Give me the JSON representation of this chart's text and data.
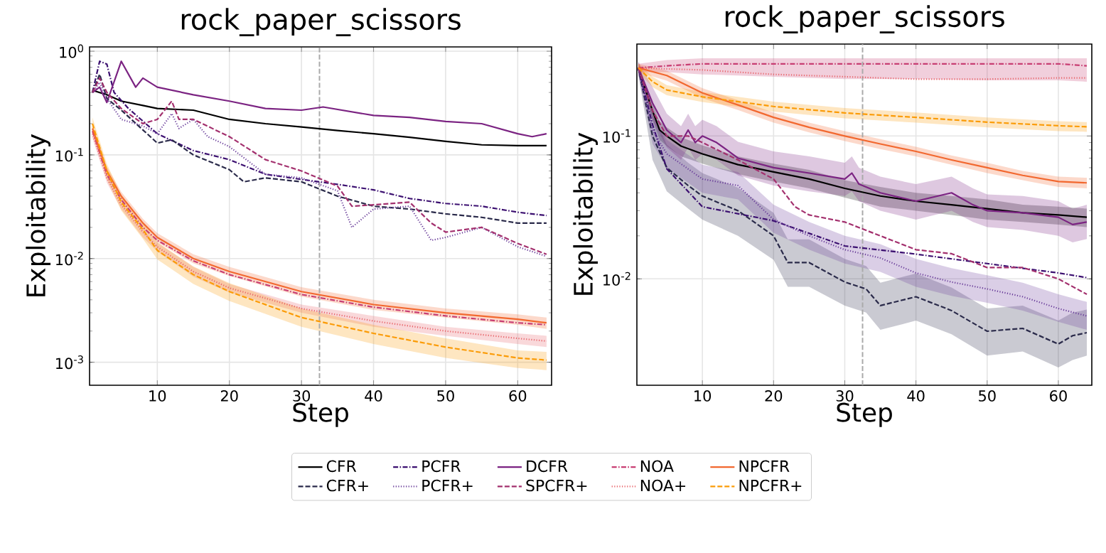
{
  "chart_data": [
    {
      "type": "line",
      "title": "rock_paper_scissors",
      "xlabel": "Step",
      "ylabel": "Exploitability",
      "log": true,
      "grid": true,
      "legend": "bottom",
      "xlim": [
        0.6,
        64.7
      ],
      "ylim": [
        0.0006,
        1.1
      ],
      "xticks": [
        10,
        20,
        30,
        40,
        50,
        60
      ],
      "yticks": [
        {
          "value": 0.001,
          "label": "10$^{-3}$"
        },
        {
          "value": 0.01,
          "label": "10$^{-2}$"
        },
        {
          "value": 0.1,
          "label": "10$^{-1}$"
        },
        {
          "value": 1,
          "label": "10$^{0}$"
        }
      ],
      "ref_lines": [
        {
          "axis": "x",
          "value": 32.5,
          "color": "#aaaaaa",
          "line_style": "dashed"
        }
      ],
      "series": [
        {
          "name": "CFR",
          "color": "#000000",
          "line_style": "solid",
          "x": [
            1,
            3,
            5,
            8,
            10,
            15,
            20,
            25,
            30,
            35,
            40,
            45,
            50,
            55,
            60,
            64
          ],
          "values": [
            0.42,
            0.38,
            0.33,
            0.3,
            0.28,
            0.27,
            0.22,
            0.2,
            0.186,
            0.172,
            0.16,
            0.148,
            0.135,
            0.125,
            0.123,
            0.123
          ]
        },
        {
          "name": "CFR+",
          "color": "#2a2a4a",
          "line_style": "dashed",
          "x": [
            1,
            2,
            3,
            5,
            10,
            12,
            15,
            20,
            22,
            25,
            30,
            35,
            40,
            45,
            50,
            55,
            60,
            64
          ],
          "values": [
            0.4,
            0.6,
            0.35,
            0.27,
            0.13,
            0.14,
            0.1,
            0.072,
            0.055,
            0.06,
            0.055,
            0.04,
            0.032,
            0.03,
            0.027,
            0.025,
            0.022,
            0.022
          ]
        },
        {
          "name": "PCFR",
          "color": "#3b0f70",
          "line_style": "dashdot",
          "x": [
            1,
            2,
            3,
            4,
            6,
            10,
            15,
            20,
            25,
            30,
            35,
            40,
            45,
            50,
            55,
            60,
            64
          ],
          "values": [
            0.4,
            0.8,
            0.75,
            0.4,
            0.28,
            0.16,
            0.11,
            0.09,
            0.065,
            0.058,
            0.052,
            0.046,
            0.038,
            0.034,
            0.032,
            0.028,
            0.026
          ]
        },
        {
          "name": "PCFR+",
          "color": "#6a3d9a",
          "line_style": "dotted",
          "x": [
            1,
            2,
            3,
            5,
            8,
            10,
            12,
            13,
            15,
            17,
            20,
            25,
            30,
            35,
            37,
            40,
            45,
            48,
            50,
            55,
            60,
            64
          ],
          "values": [
            0.4,
            0.5,
            0.35,
            0.22,
            0.19,
            0.16,
            0.25,
            0.18,
            0.22,
            0.15,
            0.12,
            0.065,
            0.06,
            0.045,
            0.02,
            0.03,
            0.032,
            0.015,
            0.016,
            0.02,
            0.013,
            0.0105
          ]
        },
        {
          "name": "DCFR",
          "color": "#7b2382",
          "line_style": "solid",
          "x": [
            1,
            2,
            3,
            5,
            7,
            8,
            10,
            15,
            20,
            25,
            30,
            33,
            40,
            45,
            50,
            55,
            60,
            62,
            64
          ],
          "values": [
            0.4,
            0.45,
            0.32,
            0.8,
            0.45,
            0.55,
            0.45,
            0.38,
            0.33,
            0.28,
            0.27,
            0.29,
            0.24,
            0.23,
            0.21,
            0.2,
            0.16,
            0.15,
            0.16
          ]
        },
        {
          "name": "SPCFR+",
          "color": "#a3306e",
          "line_style": "dashed",
          "x": [
            1,
            2,
            3,
            5,
            8,
            10,
            12,
            13,
            15,
            20,
            25,
            30,
            35,
            37,
            40,
            45,
            48,
            50,
            55,
            60,
            64
          ],
          "values": [
            0.4,
            0.55,
            0.4,
            0.28,
            0.2,
            0.22,
            0.33,
            0.22,
            0.22,
            0.15,
            0.09,
            0.07,
            0.05,
            0.032,
            0.033,
            0.035,
            0.022,
            0.018,
            0.02,
            0.014,
            0.011
          ]
        },
        {
          "name": "NOA",
          "color": "#c83e73",
          "line_style": "dashdot",
          "x": [
            1,
            3,
            5,
            8,
            10,
            15,
            20,
            30,
            40,
            50,
            60,
            64
          ],
          "values": [
            0.17,
            0.065,
            0.037,
            0.02,
            0.015,
            0.0095,
            0.007,
            0.0045,
            0.0034,
            0.0028,
            0.0024,
            0.0023
          ]
        },
        {
          "name": "NOA+",
          "color": "#e8646a",
          "line_style": "dotted",
          "x": [
            1,
            3,
            5,
            8,
            10,
            15,
            20,
            30,
            40,
            50,
            60,
            64
          ],
          "values": [
            0.16,
            0.06,
            0.033,
            0.018,
            0.013,
            0.0075,
            0.0052,
            0.0033,
            0.0025,
            0.002,
            0.0017,
            0.0016
          ],
          "lower": [
            0.145,
            0.054,
            0.03,
            0.016,
            0.0117,
            0.0067,
            0.0047,
            0.003,
            0.0022,
            0.0018,
            0.0015,
            0.0014
          ],
          "upper": [
            0.176,
            0.066,
            0.036,
            0.02,
            0.0143,
            0.0083,
            0.0057,
            0.0036,
            0.0028,
            0.0022,
            0.0019,
            0.0018
          ]
        },
        {
          "name": "NPCFR",
          "color": "#f2682f",
          "line_style": "solid",
          "x": [
            1,
            3,
            5,
            8,
            10,
            15,
            20,
            30,
            40,
            50,
            60,
            64
          ],
          "values": [
            0.18,
            0.07,
            0.04,
            0.022,
            0.016,
            0.01,
            0.0075,
            0.0048,
            0.0036,
            0.003,
            0.0026,
            0.0024
          ],
          "lower": [
            0.162,
            0.063,
            0.036,
            0.0198,
            0.0144,
            0.009,
            0.0068,
            0.0043,
            0.0032,
            0.0027,
            0.0023,
            0.0021
          ],
          "upper": [
            0.198,
            0.077,
            0.044,
            0.0242,
            0.0176,
            0.011,
            0.0083,
            0.0053,
            0.004,
            0.0033,
            0.0029,
            0.0027
          ]
        },
        {
          "name": "NPCFR+",
          "color": "#fb9b06",
          "line_style": "dashed",
          "x": [
            1,
            3,
            5,
            8,
            10,
            15,
            20,
            30,
            40,
            50,
            60,
            64
          ],
          "values": [
            0.2,
            0.07,
            0.035,
            0.019,
            0.012,
            0.007,
            0.0048,
            0.0027,
            0.0019,
            0.0014,
            0.0011,
            0.00105
          ],
          "lower": [
            0.17,
            0.058,
            0.029,
            0.0155,
            0.0098,
            0.0057,
            0.0039,
            0.0022,
            0.0015,
            0.0011,
            0.00088,
            0.00084
          ],
          "upper": [
            0.23,
            0.082,
            0.041,
            0.0225,
            0.0144,
            0.0084,
            0.0058,
            0.0033,
            0.0023,
            0.0017,
            0.0013,
            0.00126
          ]
        }
      ]
    },
    {
      "type": "line",
      "title": "rock_paper_scissors",
      "xlabel": "Step",
      "ylabel": "Exploitability",
      "log": true,
      "grid": true,
      "xlim": [
        0.8,
        64.7
      ],
      "ylim": [
        0.0018,
        0.44
      ],
      "xticks": [
        10,
        20,
        30,
        40,
        50,
        60
      ],
      "yticks": [
        {
          "value": 0.01,
          "label": "10$^{-2}$"
        },
        {
          "value": 0.1,
          "label": "10$^{-1}$"
        }
      ],
      "ref_lines": [
        {
          "axis": "x",
          "value": 32.5,
          "color": "#aaaaaa",
          "line_style": "dashed"
        }
      ],
      "series": [
        {
          "color": "#000000",
          "line_style": "solid",
          "x": [
            1,
            3,
            4,
            5,
            7,
            10,
            15,
            20,
            25,
            30,
            35,
            40,
            45,
            50,
            55,
            60,
            64
          ],
          "values": [
            0.3,
            0.15,
            0.11,
            0.1,
            0.085,
            0.075,
            0.063,
            0.056,
            0.05,
            0.043,
            0.038,
            0.035,
            0.033,
            0.031,
            0.029,
            0.028,
            0.027
          ],
          "lower": [
            0.28,
            0.13,
            0.094,
            0.085,
            0.072,
            0.064,
            0.054,
            0.048,
            0.043,
            0.037,
            0.032,
            0.03,
            0.028,
            0.026,
            0.025,
            0.024,
            0.023
          ],
          "upper": [
            0.32,
            0.17,
            0.127,
            0.115,
            0.098,
            0.086,
            0.072,
            0.064,
            0.058,
            0.049,
            0.044,
            0.04,
            0.038,
            0.036,
            0.033,
            0.032,
            0.031
          ]
        },
        {
          "color": "#2a2a4a",
          "line_style": "dashed",
          "x": [
            1,
            3,
            5,
            8,
            10,
            15,
            20,
            22,
            25,
            30,
            33,
            35,
            40,
            45,
            50,
            55,
            60,
            62,
            64
          ],
          "values": [
            0.3,
            0.1,
            0.06,
            0.045,
            0.038,
            0.03,
            0.02,
            0.013,
            0.013,
            0.0095,
            0.0085,
            0.0065,
            0.0075,
            0.006,
            0.0043,
            0.0045,
            0.0035,
            0.004,
            0.0042
          ],
          "lower": [
            0.27,
            0.068,
            0.041,
            0.031,
            0.026,
            0.02,
            0.0136,
            0.0088,
            0.0088,
            0.0065,
            0.0058,
            0.0044,
            0.0051,
            0.0041,
            0.0029,
            0.0031,
            0.0024,
            0.0027,
            0.0029
          ],
          "upper": [
            0.33,
            0.145,
            0.087,
            0.065,
            0.055,
            0.0435,
            0.029,
            0.0189,
            0.0189,
            0.0138,
            0.0123,
            0.0094,
            0.0109,
            0.0087,
            0.0062,
            0.0065,
            0.0051,
            0.0058,
            0.0061
          ]
        },
        {
          "color": "#3b0f70",
          "line_style": "dashdot",
          "x": [
            1,
            3,
            5,
            10,
            20,
            30,
            40,
            50,
            60,
            64
          ],
          "values": [
            0.3,
            0.12,
            0.059,
            0.032,
            0.0255,
            0.017,
            0.0149,
            0.0128,
            0.011,
            0.0102
          ]
        },
        {
          "color": "#6a3d9a",
          "line_style": "dotted",
          "x": [
            1,
            3,
            5,
            10,
            15,
            20,
            25,
            30,
            35,
            40,
            45,
            50,
            55,
            60,
            64
          ],
          "values": [
            0.3,
            0.11,
            0.075,
            0.05,
            0.045,
            0.026,
            0.02,
            0.016,
            0.014,
            0.011,
            0.0095,
            0.0085,
            0.0075,
            0.0062,
            0.0055
          ],
          "lower": [
            0.27,
            0.088,
            0.06,
            0.04,
            0.036,
            0.021,
            0.016,
            0.0128,
            0.0112,
            0.0088,
            0.0076,
            0.0068,
            0.006,
            0.005,
            0.0044
          ],
          "upper": [
            0.33,
            0.138,
            0.094,
            0.063,
            0.056,
            0.033,
            0.025,
            0.02,
            0.0175,
            0.0138,
            0.0119,
            0.0106,
            0.0094,
            0.0078,
            0.0069
          ]
        },
        {
          "color": "#7b2382",
          "line_style": "solid",
          "x": [
            1,
            3,
            5,
            7,
            8,
            9,
            10,
            12,
            15,
            20,
            25,
            30,
            31,
            32,
            35,
            40,
            45,
            48,
            50,
            55,
            60,
            62,
            64
          ],
          "values": [
            0.3,
            0.17,
            0.11,
            0.09,
            0.11,
            0.09,
            0.1,
            0.09,
            0.07,
            0.06,
            0.055,
            0.05,
            0.055,
            0.046,
            0.04,
            0.035,
            0.04,
            0.033,
            0.03,
            0.029,
            0.027,
            0.024,
            0.025
          ],
          "lower": [
            0.27,
            0.13,
            0.083,
            0.068,
            0.083,
            0.068,
            0.075,
            0.068,
            0.053,
            0.045,
            0.041,
            0.038,
            0.041,
            0.035,
            0.03,
            0.026,
            0.03,
            0.025,
            0.023,
            0.022,
            0.02,
            0.018,
            0.019
          ],
          "upper": [
            0.33,
            0.22,
            0.143,
            0.117,
            0.143,
            0.117,
            0.13,
            0.117,
            0.091,
            0.078,
            0.072,
            0.065,
            0.072,
            0.06,
            0.052,
            0.046,
            0.052,
            0.043,
            0.039,
            0.038,
            0.035,
            0.031,
            0.033
          ]
        },
        {
          "color": "#a3306e",
          "line_style": "dashed",
          "x": [
            1,
            3,
            5,
            8,
            10,
            15,
            20,
            23,
            25,
            30,
            35,
            40,
            45,
            50,
            55,
            60,
            64
          ],
          "values": [
            0.3,
            0.15,
            0.1,
            0.1,
            0.09,
            0.068,
            0.05,
            0.032,
            0.028,
            0.025,
            0.02,
            0.016,
            0.015,
            0.012,
            0.012,
            0.01,
            0.0078
          ]
        },
        {
          "color": "#c83e73",
          "line_style": "dashdot",
          "x": [
            1,
            5,
            10,
            20,
            30,
            40,
            50,
            60,
            64
          ],
          "values": [
            0.3,
            0.31,
            0.32,
            0.32,
            0.32,
            0.32,
            0.32,
            0.32,
            0.31
          ],
          "lower": [
            0.28,
            0.28,
            0.27,
            0.26,
            0.25,
            0.25,
            0.245,
            0.245,
            0.24
          ],
          "upper": [
            0.32,
            0.34,
            0.35,
            0.35,
            0.35,
            0.35,
            0.35,
            0.35,
            0.35
          ]
        },
        {
          "color": "#e8646a",
          "line_style": "dotted",
          "x": [
            1,
            5,
            10,
            20,
            30,
            40,
            50,
            60,
            64
          ],
          "values": [
            0.3,
            0.295,
            0.29,
            0.27,
            0.26,
            0.25,
            0.25,
            0.255,
            0.255
          ]
        },
        {
          "color": "#f2682f",
          "line_style": "solid",
          "x": [
            1,
            5,
            10,
            15,
            20,
            25,
            30,
            35,
            40,
            45,
            50,
            55,
            60,
            64
          ],
          "values": [
            0.3,
            0.265,
            0.2,
            0.165,
            0.135,
            0.115,
            0.1,
            0.088,
            0.078,
            0.068,
            0.06,
            0.053,
            0.048,
            0.047
          ],
          "lower": [
            0.28,
            0.244,
            0.184,
            0.152,
            0.124,
            0.106,
            0.092,
            0.081,
            0.072,
            0.063,
            0.055,
            0.049,
            0.044,
            0.043
          ],
          "upper": [
            0.32,
            0.286,
            0.216,
            0.178,
            0.146,
            0.124,
            0.108,
            0.095,
            0.084,
            0.073,
            0.065,
            0.057,
            0.052,
            0.051
          ]
        },
        {
          "color": "#fb9b06",
          "line_style": "dashed",
          "x": [
            1,
            3,
            5,
            10,
            20,
            30,
            40,
            50,
            60,
            64
          ],
          "values": [
            0.3,
            0.24,
            0.21,
            0.188,
            0.161,
            0.145,
            0.135,
            0.125,
            0.118,
            0.116
          ],
          "lower": [
            0.28,
            0.22,
            0.193,
            0.173,
            0.148,
            0.133,
            0.124,
            0.115,
            0.108,
            0.107
          ],
          "upper": [
            0.32,
            0.26,
            0.227,
            0.203,
            0.174,
            0.157,
            0.146,
            0.135,
            0.127,
            0.125
          ]
        }
      ]
    }
  ]
}
